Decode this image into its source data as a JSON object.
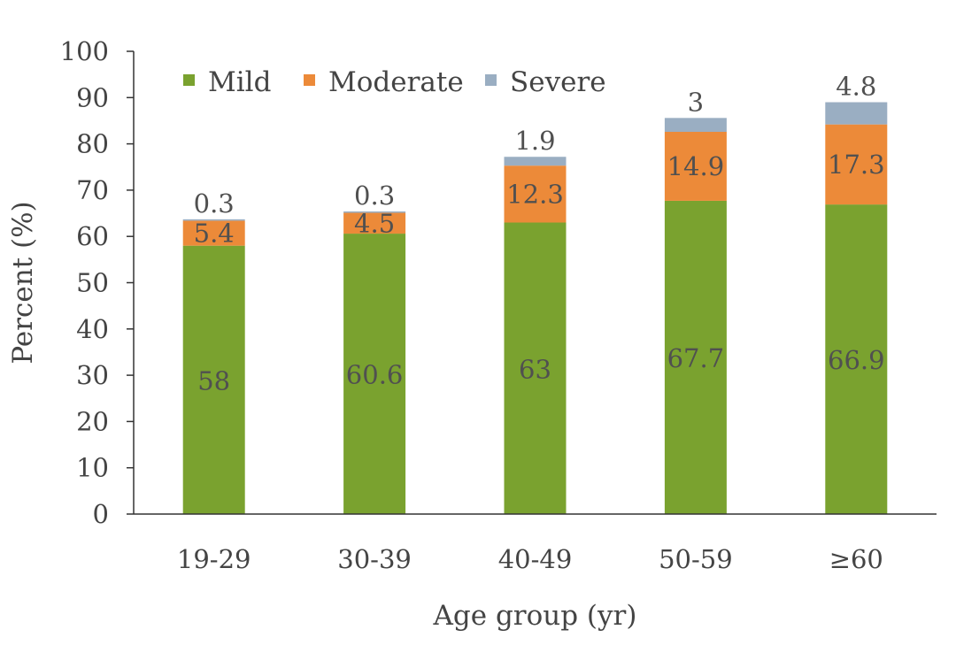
{
  "chart_data": {
    "type": "bar",
    "stacked": true,
    "categories": [
      "19-29",
      "30-39",
      "40-49",
      "50-59",
      "≥60"
    ],
    "series": [
      {
        "name": "Mild",
        "color": "#7aa22f",
        "values": [
          58,
          60.6,
          63,
          67.7,
          66.9
        ]
      },
      {
        "name": "Moderate",
        "color": "#ec8a39",
        "values": [
          5.4,
          4.5,
          12.3,
          14.9,
          17.3
        ]
      },
      {
        "name": "Severe",
        "color": "#9aaec2",
        "values": [
          0.3,
          0.3,
          1.9,
          3,
          4.8
        ]
      }
    ],
    "data_labels": {
      "Mild": [
        "58",
        "60.6",
        "63",
        "67.7",
        "66.9"
      ],
      "Moderate": [
        "5.4",
        "4.5",
        "12.3",
        "14.9",
        "17.3"
      ],
      "Severe": [
        "0.3",
        "0.3",
        "1.9",
        "3",
        "4.8"
      ]
    },
    "xlabel": "Age group (yr)",
    "ylabel": "Percent (%)",
    "ylim": [
      0,
      100
    ],
    "yticks": [
      "0",
      "10",
      "20",
      "30",
      "40",
      "50",
      "60",
      "70",
      "80",
      "90",
      "100"
    ],
    "grid": false,
    "legend_position": "top-left"
  }
}
